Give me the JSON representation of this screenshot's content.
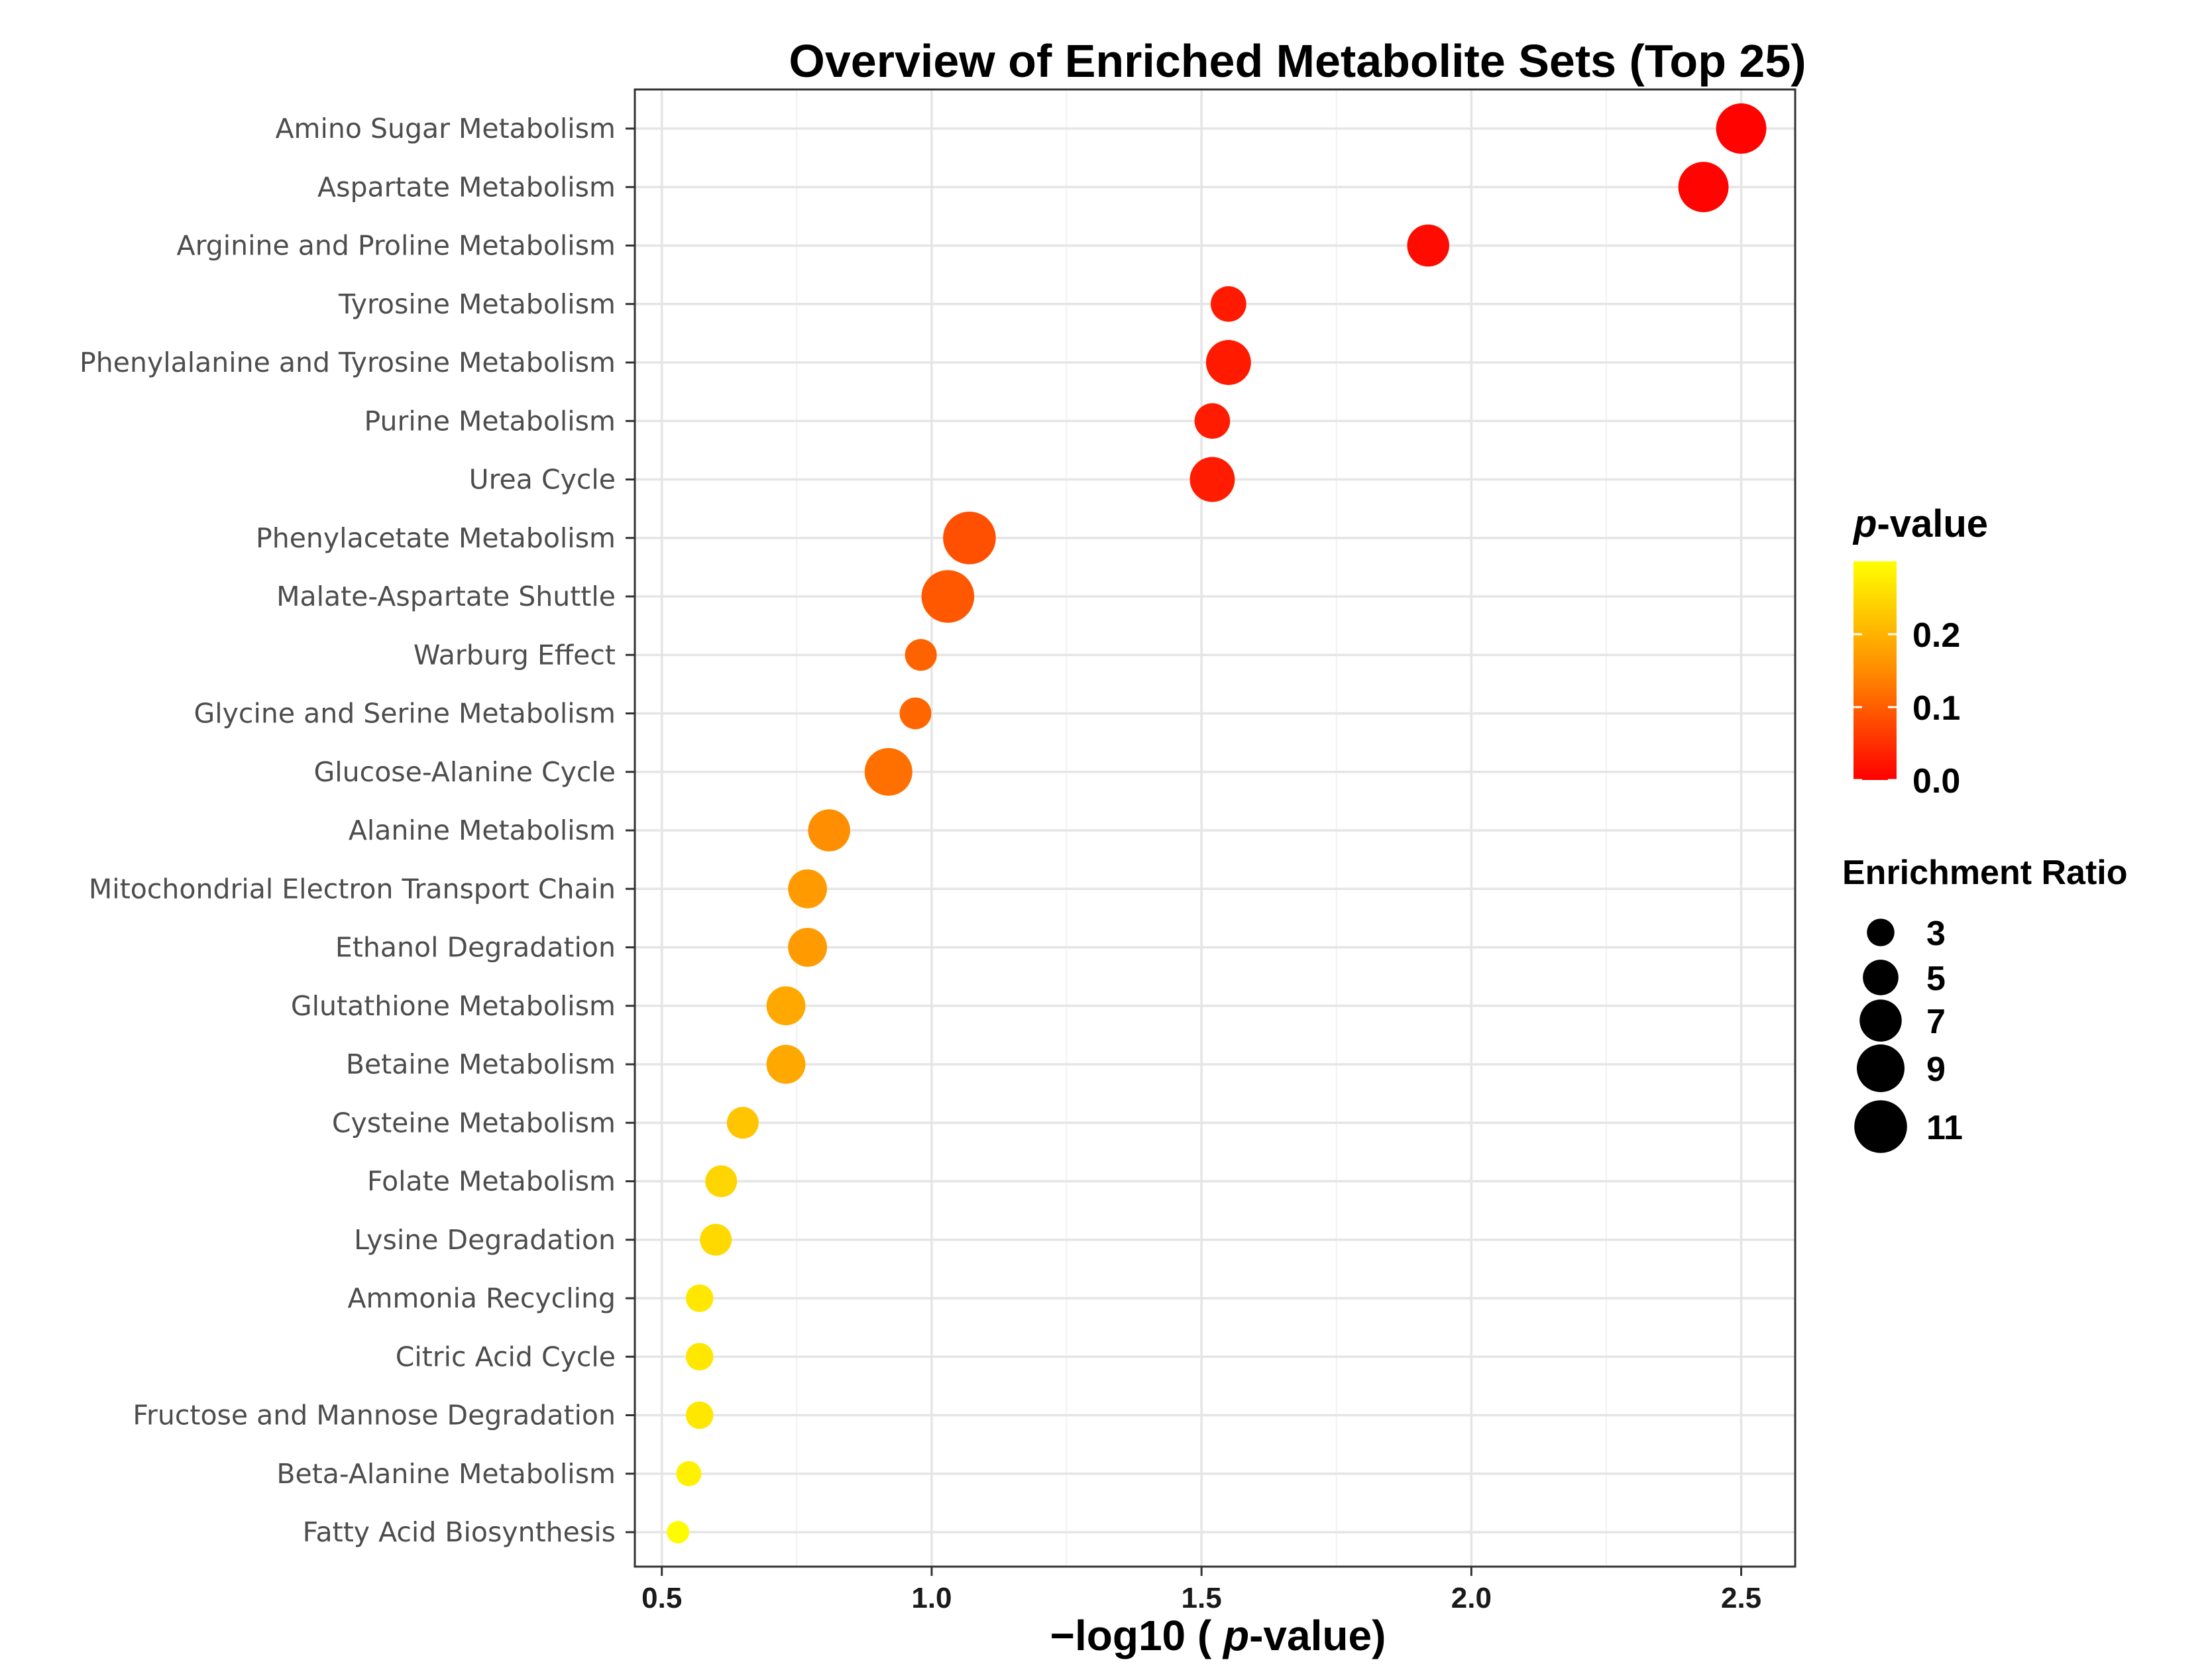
{
  "chart_data": {
    "type": "scatter",
    "title": "Overview of  Enriched Metabolite Sets (Top 25)",
    "xlabel": {
      "prefix": "−log10 ( ",
      "italic": "p",
      "suffix": "-value)"
    },
    "xlim": [
      0.45,
      2.6
    ],
    "xticks": [
      0.5,
      1.0,
      1.5,
      2.0,
      2.5
    ],
    "xtick_labels": [
      "0.5",
      "1.0",
      "1.5",
      "2.0",
      "2.5"
    ],
    "grid": true,
    "points": [
      {
        "name": "Amino Sugar Metabolism",
        "x": 2.5,
        "ratio": 10,
        "pvalue": 0.003
      },
      {
        "name": "Aspartate Metabolism",
        "x": 2.43,
        "ratio": 10,
        "pvalue": 0.004
      },
      {
        "name": "Arginine and Proline Metabolism",
        "x": 1.92,
        "ratio": 7,
        "pvalue": 0.012
      },
      {
        "name": "Tyrosine Metabolism",
        "x": 1.55,
        "ratio": 5,
        "pvalue": 0.028
      },
      {
        "name": "Phenylalanine and Tyrosine Metabolism",
        "x": 1.55,
        "ratio": 8,
        "pvalue": 0.028
      },
      {
        "name": "Purine Metabolism",
        "x": 1.52,
        "ratio": 5,
        "pvalue": 0.03
      },
      {
        "name": "Urea Cycle",
        "x": 1.52,
        "ratio": 8,
        "pvalue": 0.03
      },
      {
        "name": "Phenylacetate Metabolism",
        "x": 1.07,
        "ratio": 11,
        "pvalue": 0.085
      },
      {
        "name": "Malate-Aspartate Shuttle",
        "x": 1.03,
        "ratio": 11,
        "pvalue": 0.094
      },
      {
        "name": "Warburg Effect",
        "x": 0.98,
        "ratio": 4,
        "pvalue": 0.106
      },
      {
        "name": "Glycine and Serine Metabolism",
        "x": 0.97,
        "ratio": 4,
        "pvalue": 0.109
      },
      {
        "name": "Glucose-Alanine Cycle",
        "x": 0.92,
        "ratio": 9,
        "pvalue": 0.12
      },
      {
        "name": "Alanine Metabolism",
        "x": 0.81,
        "ratio": 7,
        "pvalue": 0.154
      },
      {
        "name": "Mitochondrial Electron Transport Chain",
        "x": 0.77,
        "ratio": 6,
        "pvalue": 0.17
      },
      {
        "name": "Ethanol Degradation",
        "x": 0.77,
        "ratio": 6,
        "pvalue": 0.17
      },
      {
        "name": "Glutathione Metabolism",
        "x": 0.73,
        "ratio": 6,
        "pvalue": 0.186
      },
      {
        "name": "Betaine Metabolism",
        "x": 0.73,
        "ratio": 6,
        "pvalue": 0.186
      },
      {
        "name": "Cysteine Metabolism",
        "x": 0.65,
        "ratio": 4,
        "pvalue": 0.224
      },
      {
        "name": "Folate Metabolism",
        "x": 0.61,
        "ratio": 4,
        "pvalue": 0.245
      },
      {
        "name": "Lysine Degradation",
        "x": 0.6,
        "ratio": 4,
        "pvalue": 0.251
      },
      {
        "name": "Ammonia Recycling",
        "x": 0.57,
        "ratio": 3,
        "pvalue": 0.269
      },
      {
        "name": "Citric Acid Cycle",
        "x": 0.57,
        "ratio": 3,
        "pvalue": 0.269
      },
      {
        "name": "Fructose and Mannose Degradation",
        "x": 0.57,
        "ratio": 3,
        "pvalue": 0.269
      },
      {
        "name": "Beta-Alanine Metabolism",
        "x": 0.55,
        "ratio": 2.5,
        "pvalue": 0.282
      },
      {
        "name": "Fatty Acid Biosynthesis",
        "x": 0.53,
        "ratio": 2,
        "pvalue": 0.295
      }
    ],
    "color_legend": {
      "title_italic": "p",
      "title_rest": "-value",
      "ticks": [
        0.2,
        0.1,
        0.0
      ],
      "tick_labels": [
        "0.2",
        "0.1",
        "0.0"
      ],
      "range": [
        0.0,
        0.3
      ],
      "low_color": "#ff0000",
      "mid_color": "#ff8c00",
      "high_color": "#ffff00"
    },
    "size_legend": {
      "title": "Enrichment Ratio",
      "values": [
        3,
        5,
        7,
        9,
        11
      ],
      "labels": [
        "3",
        "5",
        "7",
        "9",
        "11"
      ]
    }
  }
}
